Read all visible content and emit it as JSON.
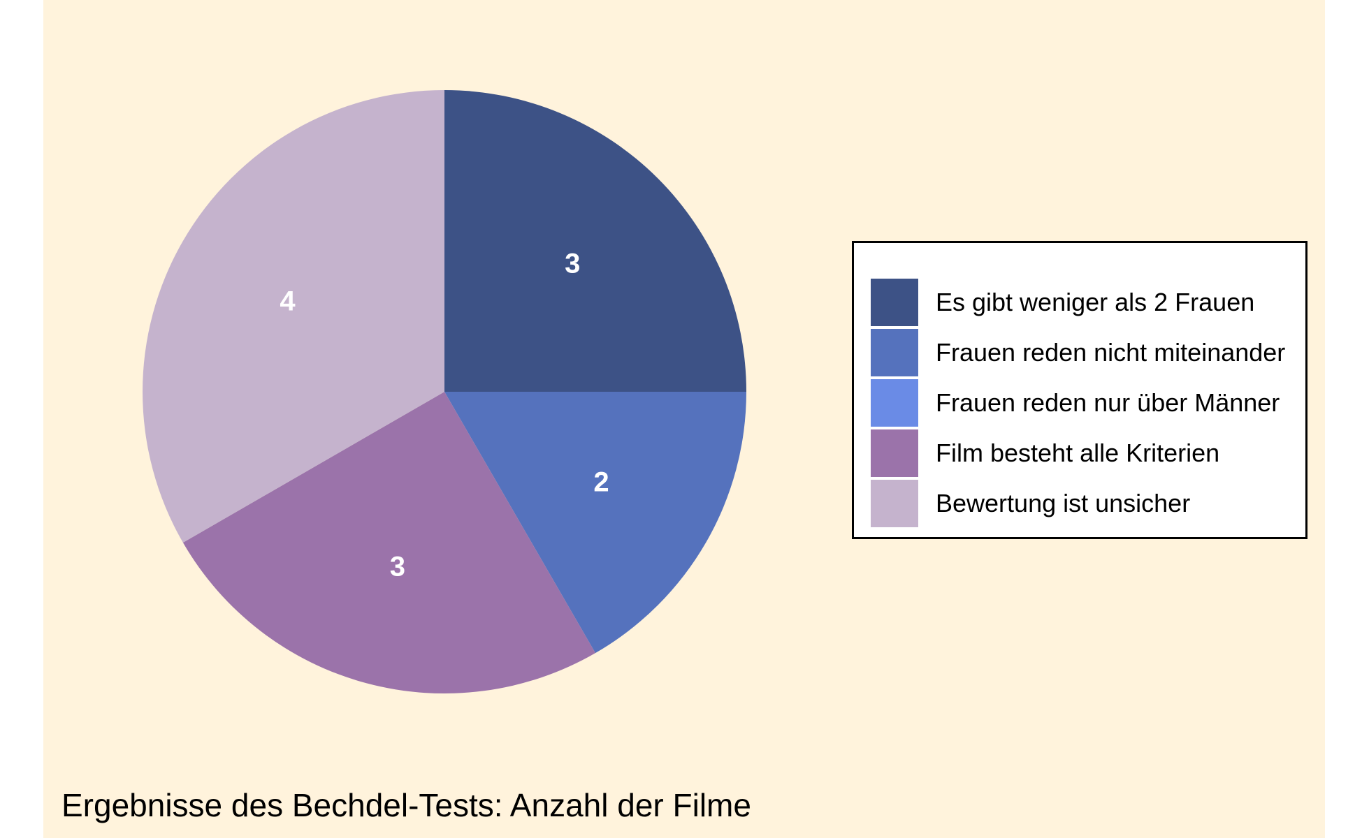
{
  "chart_data": {
    "type": "pie",
    "title": "",
    "caption": "Ergebnisse des Bechdel-Tests: Anzahl der Filme",
    "background_color": "#fff3dc",
    "legend_position": "right",
    "start_angle": "12 o'clock, clockwise",
    "slices": [
      {
        "label": "Es gibt weniger als 2 Frauen",
        "value": 3,
        "color": "#3d5286"
      },
      {
        "label": "Frauen reden nicht miteinander",
        "value": 2,
        "color": "#5572bd"
      },
      {
        "label": "Frauen reden nur über Männer",
        "value": 0,
        "color": "#6a8be6"
      },
      {
        "label": "Film besteht alle Kriterien",
        "value": 3,
        "color": "#9b73aa"
      },
      {
        "label": "Bewertung ist unsicher",
        "value": 4,
        "color": "#c5b3cd"
      }
    ]
  }
}
